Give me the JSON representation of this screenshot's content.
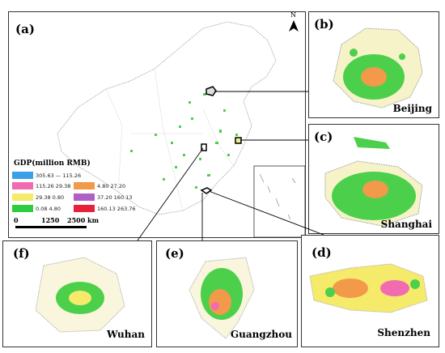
{
  "panels": {
    "a": {
      "label": "(a)"
    },
    "b": {
      "label": "(b)",
      "city": "Beijing"
    },
    "c": {
      "label": "(c)",
      "city": "Shanghai"
    },
    "d": {
      "label": "(d)",
      "city": "Shenzhen"
    },
    "e": {
      "label": "(e)",
      "city": "Guangzhou"
    },
    "f": {
      "label": "(f)",
      "city": "Wuhan"
    }
  },
  "legend": {
    "title": "GDP(million RMB)",
    "items": [
      {
        "range": "305.63 — 115.26",
        "color": "#3aa0e8"
      },
      {
        "range": "4.80  27.20",
        "color": "#f2994a"
      },
      {
        "range": "115.26  29.38",
        "color": "#f06bb0"
      },
      {
        "range": "37.20  160.13",
        "color": "#b05ec8"
      },
      {
        "range": "29.38  0.80",
        "color": "#f5ea6a"
      },
      {
        "range": "160.13  263.76",
        "color": "#e8213a"
      },
      {
        "range": "0.08  4.80",
        "color": "#2ecc40"
      }
    ]
  },
  "scale_bar": {
    "zero": "0",
    "mid": "1250",
    "end": "2500 km"
  },
  "north_arrow": {
    "label": "N"
  }
}
